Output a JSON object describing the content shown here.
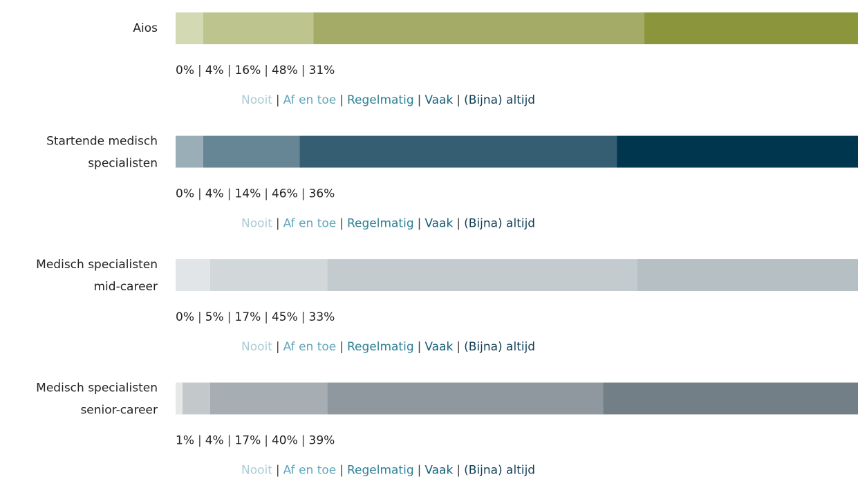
{
  "chart_data": {
    "type": "bar",
    "orientation": "horizontal",
    "stacked": true,
    "separator": "|",
    "categories": [
      [
        "Aios"
      ],
      [
        "Startende medisch",
        "specialisten"
      ],
      [
        "Medisch specialisten",
        "mid-career"
      ],
      [
        "Medisch specialisten",
        "senior-career"
      ]
    ],
    "xlim": [
      0,
      100
    ],
    "series": [
      {
        "name": "Nooit",
        "color": "#a9cbd6",
        "values": [
          0,
          0,
          0,
          1
        ],
        "value_labels": [
          "0%",
          "0%",
          "0%",
          "1%"
        ],
        "segment_colors": [
          "#e4e7cf",
          "#c2d0d6",
          "#eef0f1",
          "#e6e8e8"
        ]
      },
      {
        "name": "Af en toe",
        "color": "#5fa6bb",
        "values": [
          4,
          4,
          5,
          4
        ],
        "value_labels": [
          "4%",
          "4%",
          "5%",
          "4%"
        ],
        "segment_colors": [
          "#d3d9b3",
          "#9aaeb8",
          "#e2e5e7",
          "#c3c9cb"
        ]
      },
      {
        "name": "Regelmatig",
        "color": "#2d8195",
        "values": [
          16,
          14,
          17,
          17
        ],
        "value_labels": [
          "16%",
          "14%",
          "17%",
          "17%"
        ],
        "segment_colors": [
          "#bec48e",
          "#668595",
          "#d2d8da",
          "#a7aeb3"
        ]
      },
      {
        "name": "Vaak",
        "color": "#18607a",
        "values": [
          48,
          46,
          45,
          40
        ],
        "value_labels": [
          "48%",
          "46%",
          "45%",
          "40%"
        ],
        "segment_colors": [
          "#a4ab66",
          "#355e73",
          "#c4cbce",
          "#8f989e"
        ]
      },
      {
        "name": "(Bijna) altijd",
        "color": "#123f55",
        "values": [
          31,
          36,
          33,
          39
        ],
        "value_labels": [
          "31%",
          "36%",
          "33%",
          "39%"
        ],
        "segment_colors": [
          "#8b963c",
          "#00374f",
          "#b6bfc4",
          "#737f86"
        ]
      }
    ]
  }
}
